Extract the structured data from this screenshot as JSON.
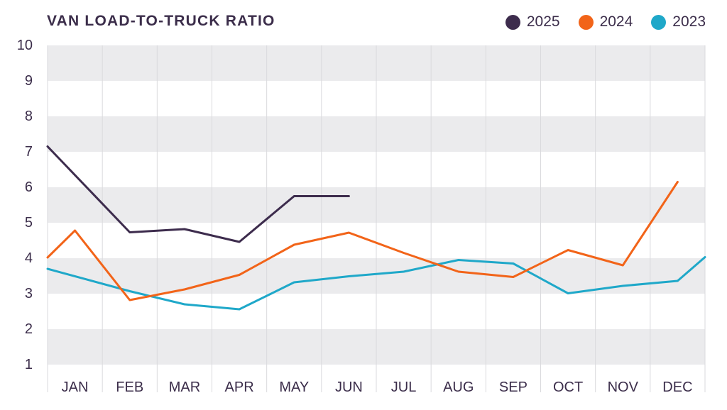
{
  "chart_data": {
    "type": "line",
    "title": "VAN LOAD-TO-TRUCK RATIO",
    "categories": [
      "JAN",
      "FEB",
      "MAR",
      "APR",
      "MAY",
      "JUN",
      "JUL",
      "AUG",
      "SEP",
      "OCT",
      "NOV",
      "DEC"
    ],
    "yticks": [
      "1",
      "2",
      "3",
      "4",
      "5",
      "6",
      "7",
      "8",
      "9",
      "10"
    ],
    "ylim": [
      1,
      10
    ],
    "grid": "alternating horizontal bands",
    "legend_position": "top-right",
    "series": [
      {
        "name": "2025",
        "color": "#3d2c4d",
        "x": [
          0.0,
          1.5,
          2.5,
          3.5,
          4.5,
          5.5
        ],
        "values": [
          7.15,
          4.73,
          4.82,
          4.46,
          5.75,
          5.75
        ]
      },
      {
        "name": "2024",
        "color": "#f26419",
        "x": [
          0.0,
          0.5,
          1.5,
          2.5,
          3.5,
          4.5,
          5.5,
          6.5,
          7.5,
          8.5,
          9.5,
          10.5,
          11.5
        ],
        "values": [
          4.02,
          4.78,
          2.82,
          3.12,
          3.53,
          4.38,
          4.72,
          4.15,
          3.62,
          3.47,
          4.23,
          3.8,
          6.15
        ]
      },
      {
        "name": "2023",
        "color": "#1fa8c9",
        "x": [
          0.0,
          1.5,
          2.5,
          3.5,
          4.5,
          5.5,
          6.5,
          7.5,
          8.5,
          9.5,
          10.5,
          11.5,
          12.0
        ],
        "values": [
          3.7,
          3.07,
          2.7,
          2.56,
          3.32,
          3.49,
          3.62,
          3.95,
          3.85,
          3.01,
          3.22,
          3.36,
          4.03
        ]
      }
    ]
  }
}
